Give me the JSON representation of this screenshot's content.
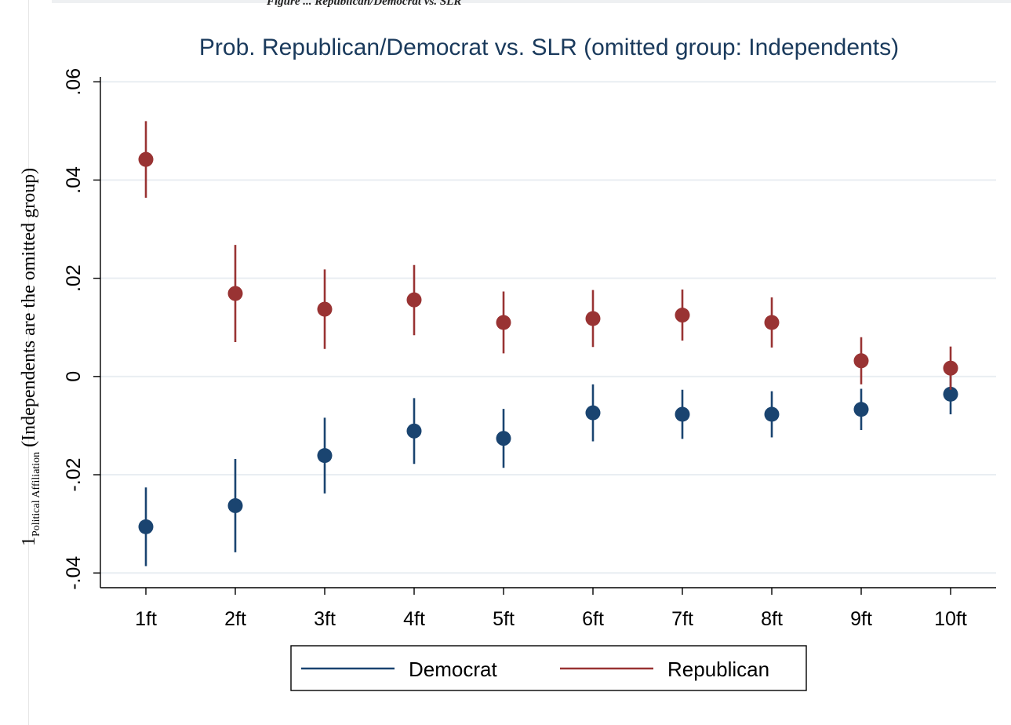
{
  "caption": "Figure ... Republican/Democrat vs. SLR",
  "chart_data": {
    "type": "scatter",
    "title": "Prob. Republican/Democrat vs. SLR (omitted group: Independents)",
    "ylabel_main": "1",
    "ylabel_sub": "Political Affiliation",
    "ylabel_rest": " (Independents are the omitted group)",
    "xlabel": "",
    "categories": [
      "1ft",
      "2ft",
      "3ft",
      "4ft",
      "5ft",
      "6ft",
      "7ft",
      "8ft",
      "9ft",
      "10ft"
    ],
    "ylim": [
      -0.043,
      0.061
    ],
    "yticks": [
      {
        "value": -0.04,
        "label": "-.04"
      },
      {
        "value": -0.02,
        "label": "-.02"
      },
      {
        "value": 0,
        "label": "0"
      },
      {
        "value": 0.02,
        "label": ".02"
      },
      {
        "value": 0.04,
        "label": ".04"
      },
      {
        "value": 0.06,
        "label": ".06"
      }
    ],
    "grid": true,
    "legend_position": "bottom",
    "series": [
      {
        "name": "Democrat",
        "color": "#1a4470",
        "estimates": [
          -0.0306,
          -0.0263,
          -0.0161,
          -0.0111,
          -0.0126,
          -0.0074,
          -0.0077,
          -0.0077,
          -0.0067,
          -0.0036
        ],
        "ci_low": [
          -0.0386,
          -0.0358,
          -0.0238,
          -0.0178,
          -0.0186,
          -0.0132,
          -0.0127,
          -0.0124,
          -0.0109,
          -0.0077
        ],
        "ci_high": [
          -0.0226,
          -0.0168,
          -0.0084,
          -0.0044,
          -0.0066,
          -0.0016,
          -0.0027,
          -0.003,
          -0.0025,
          0.0005
        ]
      },
      {
        "name": "Republican",
        "color": "#993333",
        "estimates": [
          0.0442,
          0.0169,
          0.0137,
          0.0156,
          0.011,
          0.0118,
          0.0125,
          0.011,
          0.0032,
          0.0017
        ],
        "ci_low": [
          0.0364,
          0.007,
          0.0056,
          0.0084,
          0.0047,
          0.006,
          0.0073,
          0.0059,
          -0.0016,
          -0.0027
        ],
        "ci_high": [
          0.052,
          0.0268,
          0.0218,
          0.0227,
          0.0173,
          0.0176,
          0.0177,
          0.0161,
          0.008,
          0.0061
        ]
      }
    ]
  }
}
